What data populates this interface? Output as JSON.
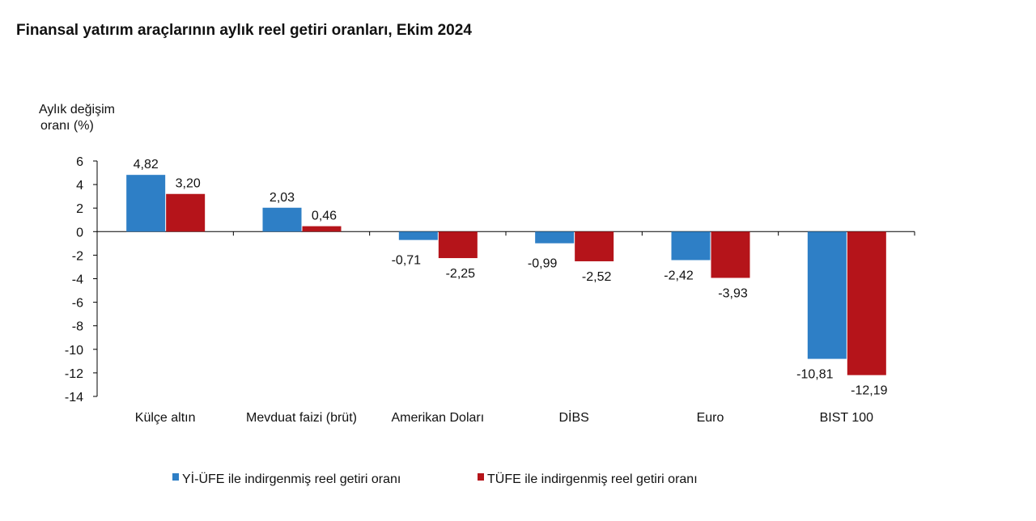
{
  "chart_data": {
    "type": "bar",
    "title": "Finansal yatırım araçlarının aylık reel getiri oranları, Ekim 2024",
    "ylabel": [
      "Aylık değişim",
      "oranı (%)"
    ],
    "xlabel": "",
    "ylim": [
      -14,
      6
    ],
    "yticks": [
      6,
      4,
      2,
      0,
      -2,
      -4,
      -6,
      -8,
      -10,
      -12,
      -14
    ],
    "grid": false,
    "legend": "bottom",
    "categories": [
      "Külçe altın",
      "Mevduat faizi (brüt)",
      "Amerikan Doları",
      "DİBS",
      "Euro",
      "BIST 100"
    ],
    "series": [
      {
        "name": "Yİ-ÜFE ile indirgenmiş reel getiri oranı",
        "color": "#2e7fc6",
        "values": [
          4.82,
          2.03,
          -0.71,
          -0.99,
          -2.42,
          -10.81
        ],
        "labels": [
          "4,82",
          "2,03",
          "-0,71",
          "-0,99",
          "-2,42",
          "-10,81"
        ]
      },
      {
        "name": "TÜFE ile indirgenmiş reel getiri oranı",
        "color": "#b5141a",
        "values": [
          3.2,
          0.46,
          -2.25,
          -2.52,
          -3.93,
          -12.19
        ],
        "labels": [
          "3,20",
          "0,46",
          "-2,25",
          "-2,52",
          "-3,93",
          "-12,19"
        ]
      }
    ]
  }
}
